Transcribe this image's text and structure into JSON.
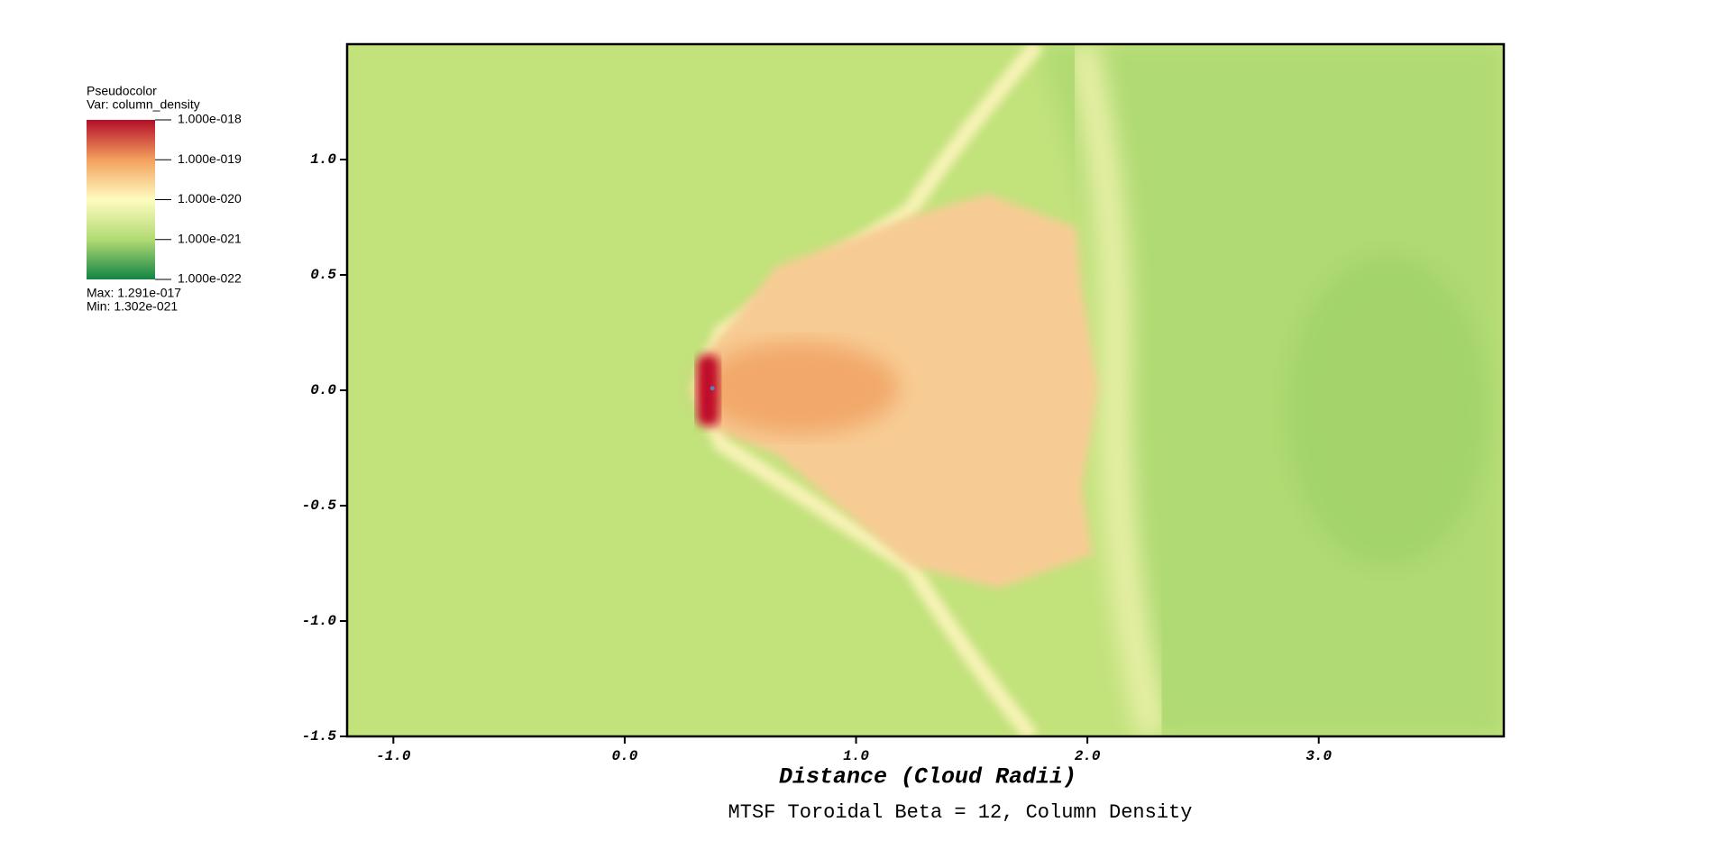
{
  "chart_data": {
    "type": "heatmap",
    "title": "MTSF Toroidal Beta = 12, Column Density",
    "x_label": "Distance (Cloud Radii)",
    "xlim": [
      -1.2,
      3.8
    ],
    "ylim": [
      -1.5,
      1.5
    ],
    "xticks": [
      {
        "value": -1,
        "label": "-1.0"
      },
      {
        "value": 0,
        "label": "0.0"
      },
      {
        "value": 1,
        "label": "1.0"
      },
      {
        "value": 2,
        "label": "2.0"
      },
      {
        "value": 3,
        "label": "3.0"
      }
    ],
    "yticks": [
      {
        "value": -1.5,
        "label": "-1.5"
      },
      {
        "value": -1,
        "label": "-1.0"
      },
      -0.5,
      {
        "value": 0,
        "label": "0.0"
      },
      0.5,
      {
        "value": 1,
        "label": "1.0"
      }
    ],
    "legend": {
      "title": "Pseudocolor",
      "variable": "Var: column_density",
      "log_scale": true,
      "ticks": [
        {
          "value": 1e-18,
          "label": "1.000e-018"
        },
        {
          "value": 1e-19,
          "label": "1.000e-019"
        },
        {
          "value": 1e-20,
          "label": "1.000e-020"
        },
        {
          "value": 1e-21,
          "label": "1.000e-021"
        },
        {
          "value": 1e-22,
          "label": "1.000e-022"
        }
      ],
      "max": "Max:  1.291e-017",
      "min": "Min:  1.302e-021"
    }
  }
}
